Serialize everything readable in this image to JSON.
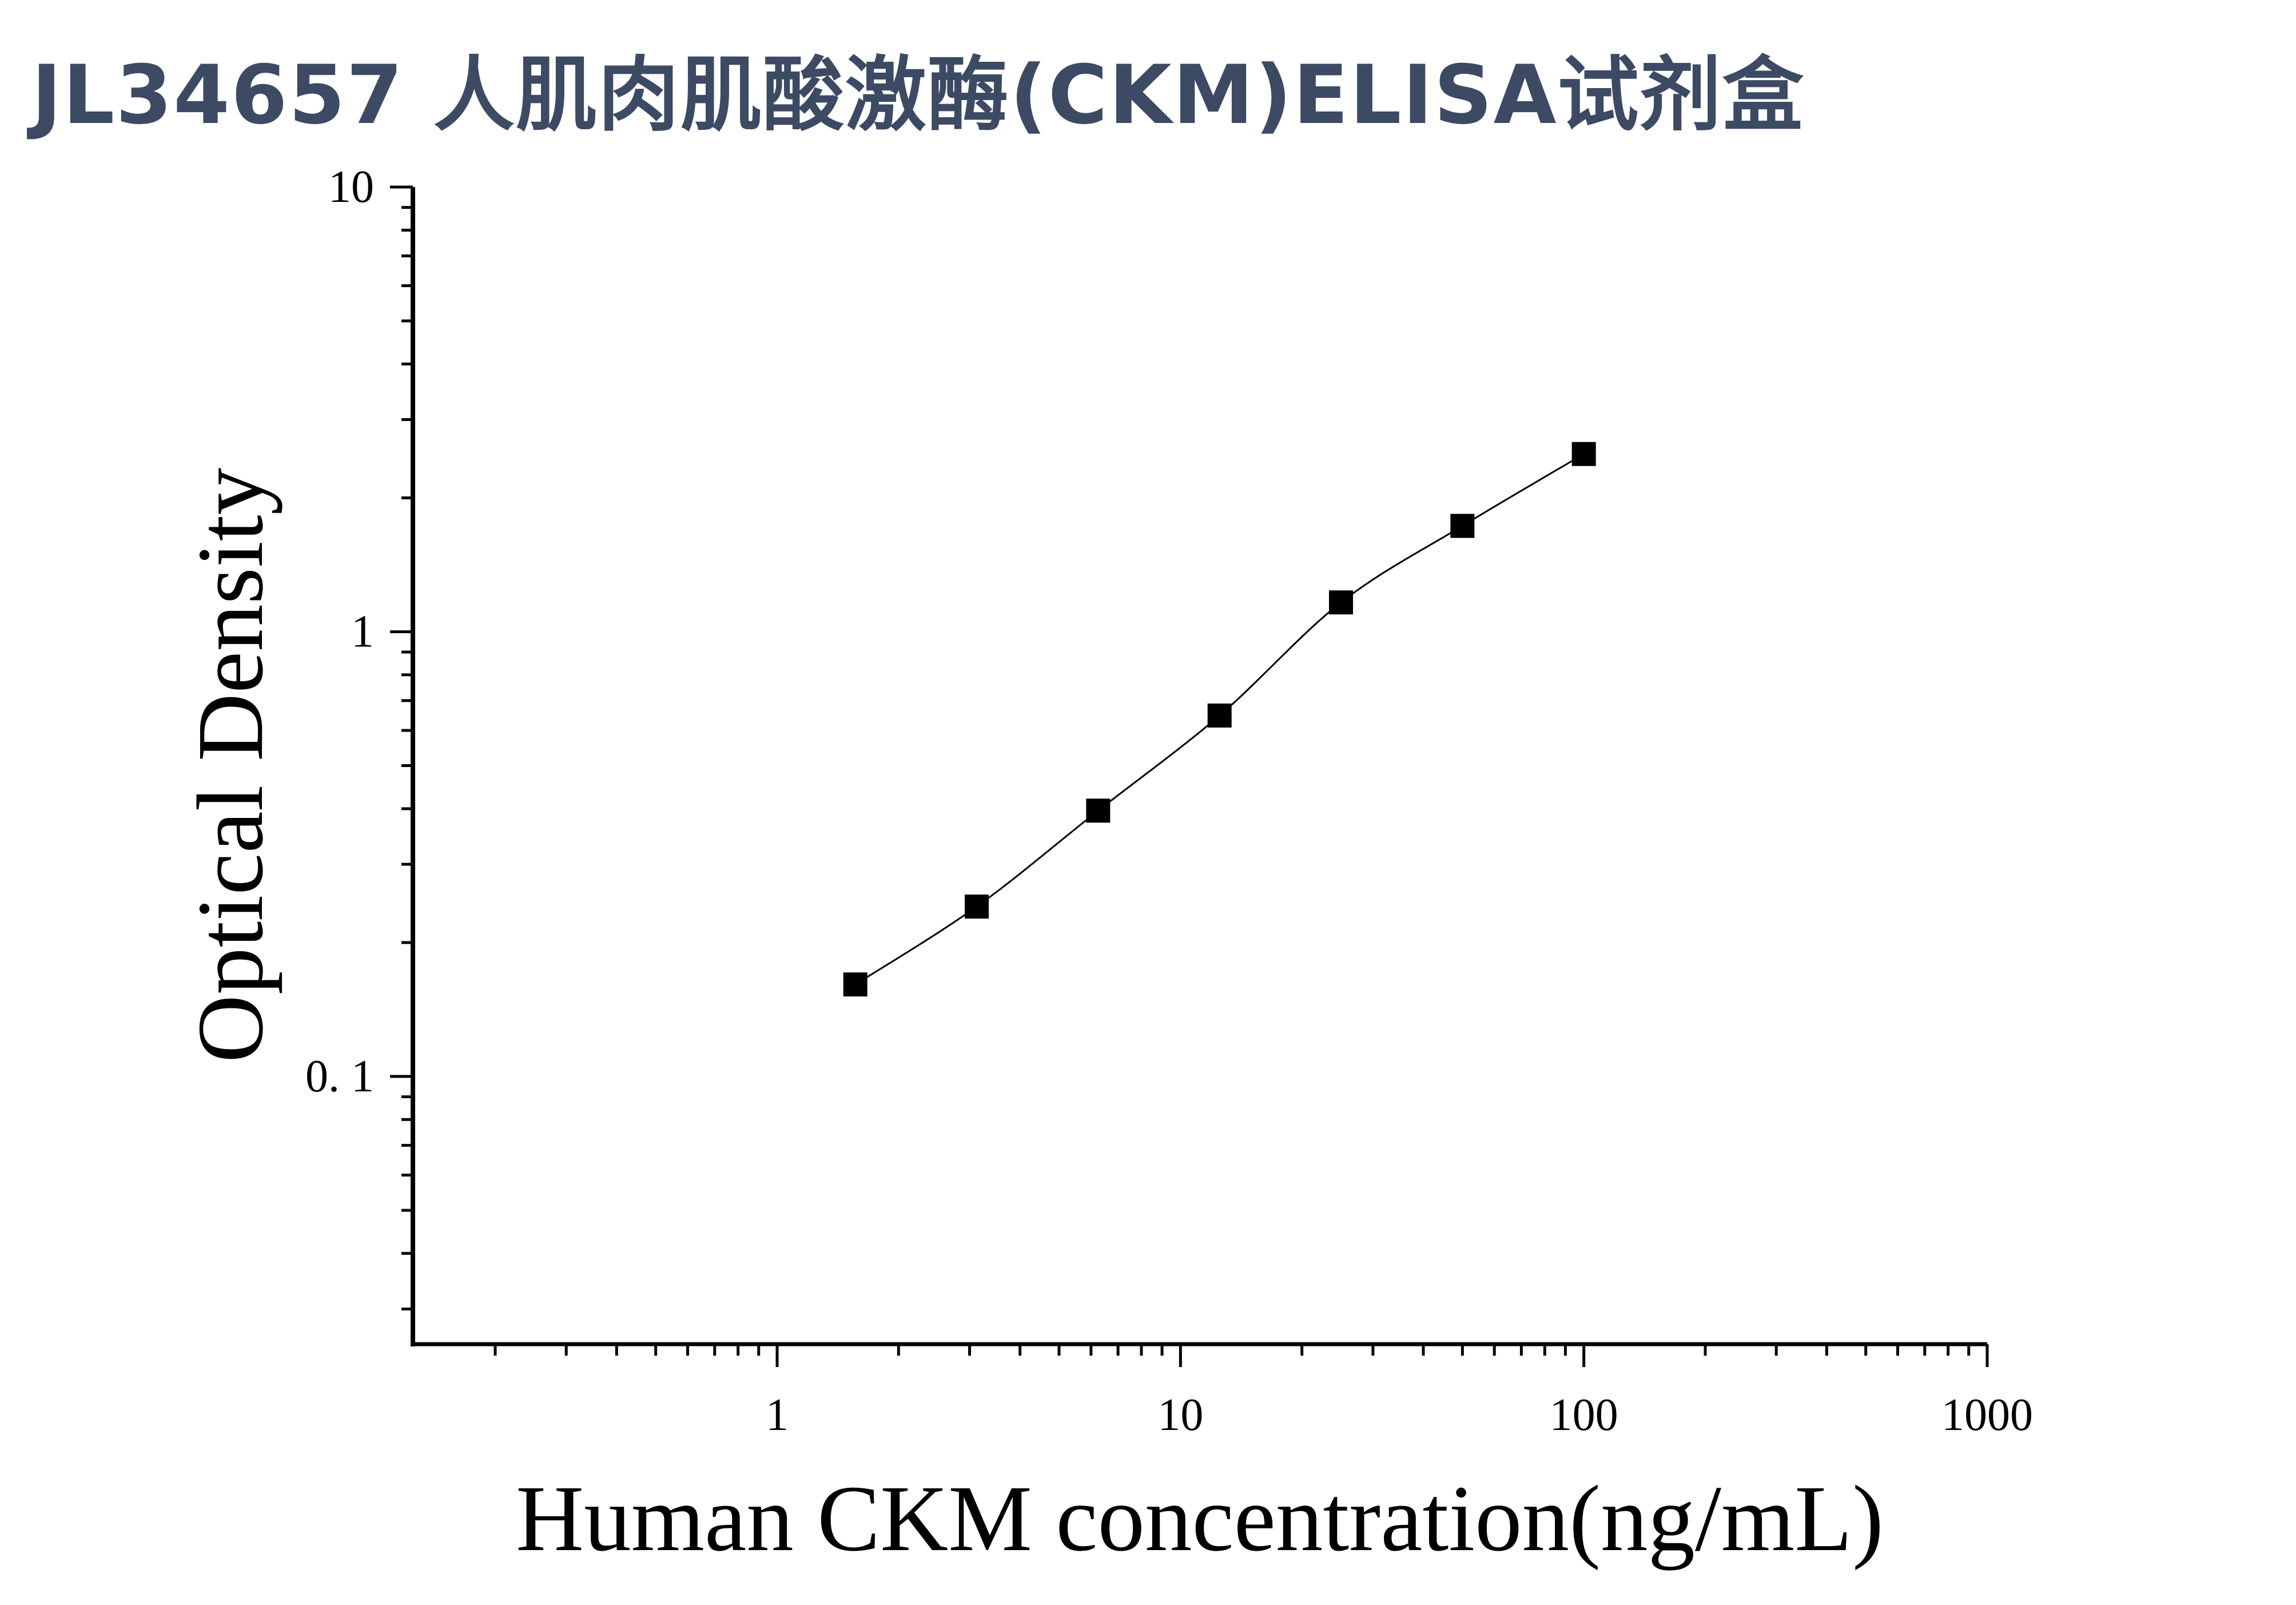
{
  "title": "JL34657 人肌肉肌酸激酶(CKM)ELISA试剂盒",
  "chart_data": {
    "type": "scatter",
    "title": "JL34657 人肌肉肌酸激酶(CKM)ELISA试剂盒",
    "xlabel": "Human CKM concentration(ng/mL)",
    "ylabel": "Optical Density",
    "x_scale": "log",
    "y_scale": "log",
    "xlim": [
      0.125,
      1000
    ],
    "ylim": [
      0.025,
      10
    ],
    "x_ticks": [
      1,
      10,
      100,
      1000
    ],
    "x_tick_labels": [
      "1",
      "10",
      "100",
      "1000"
    ],
    "y_ticks": [
      0.1,
      1,
      10
    ],
    "y_tick_labels": [
      "0. 1",
      "1",
      "10"
    ],
    "grid": false,
    "marker": "square",
    "fit_curve": true,
    "color": "#000000",
    "x": [
      1.5625,
      3.125,
      6.25,
      12.5,
      25,
      50,
      100
    ],
    "y": [
      0.161,
      0.241,
      0.396,
      0.648,
      1.164,
      1.73,
      2.51
    ]
  }
}
